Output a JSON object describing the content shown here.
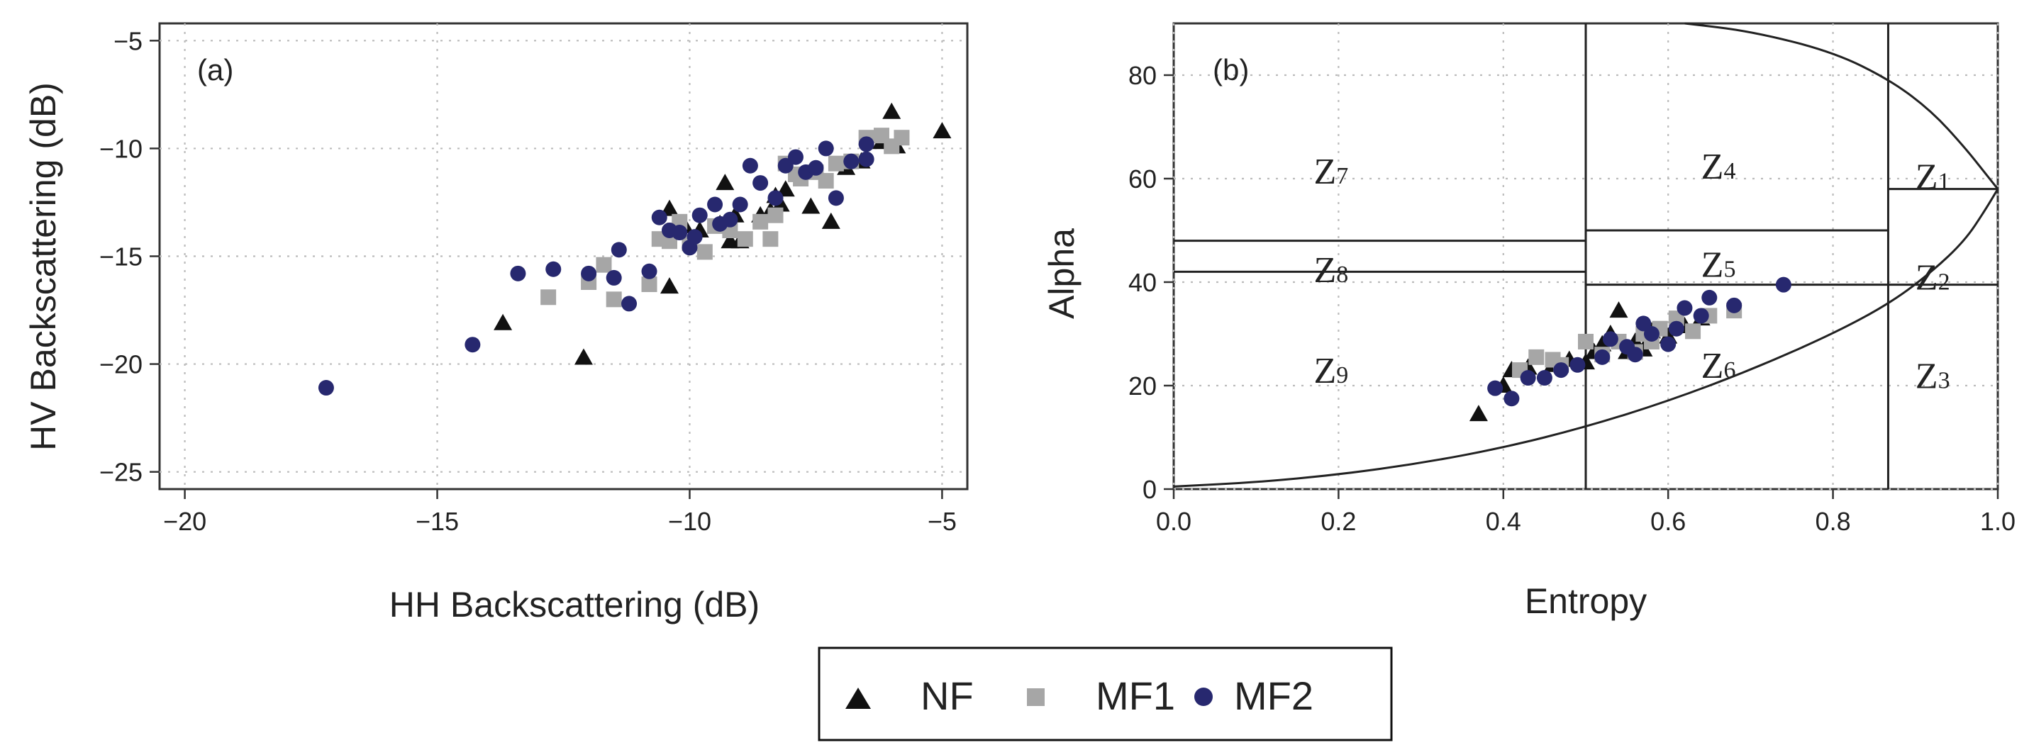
{
  "chart_data": [
    {
      "type": "scatter",
      "panel_label": "(a)",
      "xlabel": "HH Backscattering (dB)",
      "ylabel": "HV Backscattering (dB)",
      "xlim": [
        -20.5,
        -4.5
      ],
      "ylim": [
        -25.8,
        -4.2
      ],
      "xticks": [
        -20,
        -15,
        -10,
        -5
      ],
      "yticks": [
        -25,
        -20,
        -15,
        -10,
        -5
      ],
      "xtick_labels": [
        "−20",
        "−15",
        "−10",
        "−5"
      ],
      "ytick_labels": [
        "−25",
        "−20",
        "−15",
        "−10",
        "−5"
      ],
      "grid": true,
      "series": [
        {
          "name": "NF",
          "marker": "triangle",
          "color": "#111111",
          "x": [
            -13.7,
            -12.1,
            -10.4,
            -10.4,
            -10.1,
            -9.8,
            -9.4,
            -9.3,
            -9.2,
            -9.1,
            -9.0,
            -8.6,
            -8.4,
            -8.3,
            -8.2,
            -8.1,
            -7.6,
            -7.2,
            -6.9,
            -6.6,
            -6.2,
            -6.0,
            -5.9,
            -5.0
          ],
          "y": [
            -18.1,
            -19.7,
            -16.4,
            -12.8,
            -13.6,
            -13.8,
            -13.5,
            -11.6,
            -14.3,
            -13.1,
            -14.3,
            -13.1,
            -12.9,
            -12.2,
            -12.6,
            -11.9,
            -12.7,
            -13.4,
            -10.9,
            -10.6,
            -9.7,
            -8.3,
            -9.9,
            -9.2
          ]
        },
        {
          "name": "MF1",
          "marker": "square",
          "color": "#a6a6a6",
          "x": [
            -12.8,
            -12.0,
            -11.7,
            -11.5,
            -10.8,
            -10.6,
            -10.4,
            -10.3,
            -10.2,
            -10.0,
            -9.7,
            -9.5,
            -9.2,
            -8.9,
            -8.6,
            -8.4,
            -8.3,
            -8.1,
            -7.9,
            -7.8,
            -7.5,
            -7.3,
            -7.1,
            -6.8,
            -6.5,
            -6.2,
            -6.0,
            -5.8
          ],
          "y": [
            -16.9,
            -16.2,
            -15.4,
            -17.0,
            -16.3,
            -14.2,
            -14.3,
            -13.8,
            -13.4,
            -14.4,
            -14.8,
            -13.6,
            -13.8,
            -14.2,
            -13.4,
            -14.2,
            -13.1,
            -10.7,
            -11.2,
            -11.4,
            -11.1,
            -11.5,
            -10.7,
            -10.6,
            -9.5,
            -9.4,
            -9.9,
            -9.5
          ]
        },
        {
          "name": "MF2",
          "marker": "circle",
          "color": "#27286f",
          "x": [
            -17.2,
            -14.3,
            -13.4,
            -12.7,
            -12.0,
            -11.5,
            -11.4,
            -11.2,
            -10.8,
            -10.6,
            -10.4,
            -10.2,
            -10.0,
            -9.9,
            -9.8,
            -9.5,
            -9.4,
            -9.2,
            -9.0,
            -8.8,
            -8.6,
            -8.3,
            -8.1,
            -7.9,
            -7.7,
            -7.5,
            -7.3,
            -7.1,
            -6.8,
            -6.5,
            -6.5
          ],
          "y": [
            -21.1,
            -19.1,
            -15.8,
            -15.6,
            -15.8,
            -16.0,
            -14.7,
            -17.2,
            -15.7,
            -13.2,
            -13.8,
            -13.9,
            -14.6,
            -14.1,
            -13.1,
            -12.6,
            -13.5,
            -13.3,
            -12.6,
            -10.8,
            -11.6,
            -12.3,
            -10.8,
            -10.4,
            -11.1,
            -10.9,
            -10.0,
            -12.3,
            -10.6,
            -9.8,
            -10.5
          ]
        }
      ]
    },
    {
      "type": "scatter",
      "panel_label": "(b)",
      "xlabel": "Entropy",
      "ylabel": "Alpha",
      "xlim": [
        0,
        1
      ],
      "ylim": [
        0,
        90
      ],
      "xticks": [
        0.0,
        0.2,
        0.4,
        0.6,
        0.8,
        1.0
      ],
      "yticks": [
        0,
        20,
        40,
        60,
        80
      ],
      "xtick_labels": [
        "0.0",
        "0.2",
        "0.4",
        "0.6",
        "0.8",
        "1.0"
      ],
      "ytick_labels": [
        "0",
        "20",
        "40",
        "60",
        "80"
      ],
      "grid": true,
      "zone_boundaries": {
        "vertical_entropy": [
          0.5,
          0.867
        ],
        "z1_z2_alpha": 58,
        "z2_z3_alpha": 39.5,
        "z4_z5_alpha": 50,
        "z5_z6_alpha": 39.5,
        "z7_z8_alpha": 48,
        "z8_z9_alpha": 42
      },
      "zones": [
        {
          "label": "Z",
          "sub": "7",
          "entropy": 0.17,
          "alpha": 61.5
        },
        {
          "label": "Z",
          "sub": "8",
          "entropy": 0.17,
          "alpha": 42.5
        },
        {
          "label": "Z",
          "sub": "9",
          "entropy": 0.17,
          "alpha": 23.0
        },
        {
          "label": "Z",
          "sub": "4",
          "entropy": 0.64,
          "alpha": 62.5
        },
        {
          "label": "Z",
          "sub": "5",
          "entropy": 0.64,
          "alpha": 43.5
        },
        {
          "label": "Z",
          "sub": "6",
          "entropy": 0.64,
          "alpha": 24.0
        },
        {
          "label": "Z",
          "sub": "1",
          "entropy": 0.9,
          "alpha": 60.5
        },
        {
          "label": "Z",
          "sub": "2",
          "entropy": 0.9,
          "alpha": 41.0
        },
        {
          "label": "Z",
          "sub": "3",
          "entropy": 0.9,
          "alpha": 22.0
        }
      ],
      "feasible_boundary": {
        "upper_curve_entropy": [
          0.62,
          0.7,
          0.8,
          0.87,
          0.92,
          0.96,
          0.985,
          1.0
        ],
        "upper_curve_alpha": [
          90,
          88.5,
          84.5,
          79,
          73,
          66,
          61,
          58
        ],
        "lower_curve_entropy": [
          0.0,
          0.1,
          0.2,
          0.3,
          0.4,
          0.5,
          0.6,
          0.7,
          0.8,
          0.87,
          0.92,
          0.96,
          0.985,
          1.0
        ],
        "lower_curve_alpha": [
          0.5,
          1.3,
          2.8,
          5.0,
          8.0,
          12.0,
          17.0,
          23.0,
          30.0,
          36.0,
          42.0,
          48.0,
          54.0,
          58.0
        ]
      },
      "series": [
        {
          "name": "NF",
          "marker": "triangle",
          "color": "#111111",
          "entropy": [
            0.37,
            0.4,
            0.41,
            0.43,
            0.46,
            0.48,
            0.5,
            0.51,
            0.52,
            0.53,
            0.54,
            0.55,
            0.56,
            0.57,
            0.58,
            0.6,
            0.62,
            0.64
          ],
          "alpha": [
            14.5,
            20.0,
            23.0,
            23.5,
            24.0,
            25.0,
            24.5,
            26.5,
            28.0,
            30.0,
            34.5,
            26.5,
            28.5,
            27.0,
            30.5,
            29.5,
            31.5,
            33.0
          ]
        },
        {
          "name": "MF1",
          "marker": "square",
          "color": "#a6a6a6",
          "entropy": [
            0.42,
            0.44,
            0.46,
            0.47,
            0.5,
            0.52,
            0.54,
            0.56,
            0.57,
            0.58,
            0.59,
            0.61,
            0.63,
            0.65,
            0.68
          ],
          "alpha": [
            23.0,
            25.5,
            25.0,
            24.0,
            28.5,
            26.0,
            28.5,
            26.5,
            30.0,
            28.5,
            31.0,
            33.0,
            30.5,
            33.5,
            34.5
          ]
        },
        {
          "name": "MF2",
          "marker": "circle",
          "color": "#27286f",
          "entropy": [
            0.39,
            0.41,
            0.43,
            0.45,
            0.47,
            0.49,
            0.52,
            0.53,
            0.55,
            0.56,
            0.57,
            0.58,
            0.6,
            0.61,
            0.62,
            0.64,
            0.65,
            0.68,
            0.74
          ],
          "alpha": [
            19.5,
            17.5,
            21.5,
            21.5,
            23.0,
            24.0,
            25.5,
            29.0,
            27.5,
            26.0,
            32.0,
            30.0,
            28.0,
            31.0,
            35.0,
            33.5,
            37.0,
            35.5,
            39.5
          ]
        }
      ]
    }
  ],
  "legend": {
    "entries": [
      {
        "name": "NF",
        "marker": "triangle",
        "color": "#111111"
      },
      {
        "name": "MF1",
        "marker": "square",
        "color": "#a6a6a6"
      },
      {
        "name": "MF2",
        "marker": "circle",
        "color": "#27286f"
      }
    ]
  }
}
